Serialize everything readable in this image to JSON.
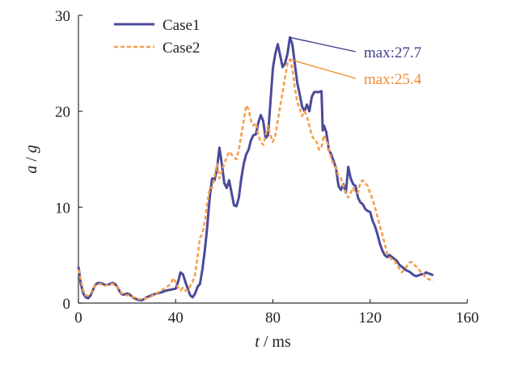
{
  "chart_data": {
    "type": "line",
    "title": "",
    "xlabel_var": "t",
    "xlabel_unit": "ms",
    "ylabel_var_a": "a",
    "ylabel_var_g": "g",
    "xlim": [
      0,
      160
    ],
    "ylim": [
      0,
      30
    ],
    "xticks": [
      0,
      40,
      80,
      120,
      160
    ],
    "yticks": [
      0,
      10,
      20,
      30
    ],
    "xtick_labels": [
      "0",
      "40",
      "80",
      "120",
      "160"
    ],
    "ytick_labels": [
      "0",
      "10",
      "20",
      "30"
    ],
    "grid": false,
    "legend_position": "top-left",
    "series": [
      {
        "name": "Case1",
        "color": "#4a4a9a",
        "style": "solid",
        "points": [
          [
            0,
            3.8
          ],
          [
            1,
            2.0
          ],
          [
            2,
            1.0
          ],
          [
            3,
            0.6
          ],
          [
            4,
            0.5
          ],
          [
            5,
            0.8
          ],
          [
            6,
            1.4
          ],
          [
            7,
            1.9
          ],
          [
            8,
            2.1
          ],
          [
            9,
            2.1
          ],
          [
            10,
            2.0
          ],
          [
            11,
            1.9
          ],
          [
            12,
            1.9
          ],
          [
            13,
            2.0
          ],
          [
            14,
            2.1
          ],
          [
            15,
            2.0
          ],
          [
            16,
            1.7
          ],
          [
            17,
            1.2
          ],
          [
            18,
            0.9
          ],
          [
            19,
            0.9
          ],
          [
            20,
            1.0
          ],
          [
            21,
            0.9
          ],
          [
            22,
            0.7
          ],
          [
            23,
            0.5
          ],
          [
            24,
            0.4
          ],
          [
            25,
            0.3
          ],
          [
            26,
            0.3
          ],
          [
            27,
            0.4
          ],
          [
            28,
            0.6
          ],
          [
            30,
            0.8
          ],
          [
            32,
            1.0
          ],
          [
            34,
            1.1
          ],
          [
            36,
            1.3
          ],
          [
            38,
            1.4
          ],
          [
            40,
            1.5
          ],
          [
            41,
            2.2
          ],
          [
            42,
            3.2
          ],
          [
            43,
            3.0
          ],
          [
            44,
            2.2
          ],
          [
            45,
            1.5
          ],
          [
            46,
            0.8
          ],
          [
            47,
            0.6
          ],
          [
            48,
            1.0
          ],
          [
            49,
            1.7
          ],
          [
            50,
            2.0
          ],
          [
            51,
            3.5
          ],
          [
            52,
            5.5
          ],
          [
            53,
            8.0
          ],
          [
            54,
            11.0
          ],
          [
            55,
            13.0
          ],
          [
            56,
            12.8
          ],
          [
            57,
            14.0
          ],
          [
            58,
            16.2
          ],
          [
            59,
            14.5
          ],
          [
            60,
            12.5
          ],
          [
            61,
            12.0
          ],
          [
            62,
            12.8
          ],
          [
            63,
            11.5
          ],
          [
            64,
            10.2
          ],
          [
            65,
            10.1
          ],
          [
            66,
            11.0
          ],
          [
            67,
            13.0
          ],
          [
            68,
            14.5
          ],
          [
            69,
            15.5
          ],
          [
            70,
            16.0
          ],
          [
            71,
            17.0
          ],
          [
            72,
            17.5
          ],
          [
            73,
            17.6
          ],
          [
            74,
            18.8
          ],
          [
            75,
            19.6
          ],
          [
            76,
            19.0
          ],
          [
            77,
            17.2
          ],
          [
            78,
            17.5
          ],
          [
            79,
            21.0
          ],
          [
            80,
            24.5
          ],
          [
            81,
            26.0
          ],
          [
            82,
            27.0
          ],
          [
            83,
            25.8
          ],
          [
            84,
            24.6
          ],
          [
            85,
            25.0
          ],
          [
            86,
            26.0
          ],
          [
            87,
            27.7
          ],
          [
            88,
            27.0
          ],
          [
            89,
            25.0
          ],
          [
            90,
            23.0
          ],
          [
            91,
            21.8
          ],
          [
            92,
            20.5
          ],
          [
            93,
            20.0
          ],
          [
            94,
            20.7
          ],
          [
            95,
            20.0
          ],
          [
            96,
            21.5
          ],
          [
            97,
            22.0
          ],
          [
            98,
            22.0
          ],
          [
            99,
            22.0
          ],
          [
            100,
            22.1
          ],
          [
            100.5,
            18.0
          ],
          [
            101,
            18.5
          ],
          [
            102,
            17.8
          ],
          [
            103,
            16.0
          ],
          [
            104,
            15.5
          ],
          [
            105,
            14.8
          ],
          [
            106,
            14.0
          ],
          [
            107,
            12.2
          ],
          [
            108,
            11.8
          ],
          [
            109,
            12.4
          ],
          [
            110,
            11.5
          ],
          [
            111,
            14.2
          ],
          [
            112,
            13.0
          ],
          [
            113,
            12.4
          ],
          [
            114,
            12.2
          ],
          [
            115,
            11.0
          ],
          [
            116,
            10.5
          ],
          [
            117,
            10.3
          ],
          [
            118,
            9.8
          ],
          [
            119,
            9.6
          ],
          [
            120,
            9.5
          ],
          [
            121,
            8.6
          ],
          [
            122,
            8.0
          ],
          [
            123,
            7.2
          ],
          [
            124,
            6.2
          ],
          [
            125,
            5.5
          ],
          [
            126,
            5.0
          ],
          [
            127,
            4.8
          ],
          [
            128,
            5.0
          ],
          [
            129,
            4.8
          ],
          [
            130,
            4.6
          ],
          [
            131,
            4.4
          ],
          [
            132,
            4.0
          ],
          [
            133,
            3.8
          ],
          [
            134,
            3.6
          ],
          [
            135,
            3.4
          ],
          [
            136,
            3.3
          ],
          [
            137,
            3.1
          ],
          [
            138,
            2.9
          ],
          [
            139,
            2.8
          ],
          [
            140,
            2.9
          ],
          [
            141,
            3.0
          ],
          [
            142,
            3.0
          ],
          [
            143,
            3.2
          ],
          [
            144,
            3.1
          ],
          [
            145,
            3.0
          ],
          [
            146,
            2.9
          ]
        ]
      },
      {
        "name": "Case2",
        "color": "#f5a050",
        "style": "dashed",
        "points": [
          [
            0,
            3.5
          ],
          [
            1,
            2.4
          ],
          [
            2,
            1.3
          ],
          [
            3,
            0.8
          ],
          [
            4,
            0.8
          ],
          [
            5,
            1.0
          ],
          [
            6,
            1.5
          ],
          [
            7,
            1.8
          ],
          [
            8,
            2.0
          ],
          [
            9,
            2.0
          ],
          [
            10,
            1.9
          ],
          [
            11,
            1.8
          ],
          [
            12,
            1.9
          ],
          [
            13,
            2.0
          ],
          [
            14,
            2.0
          ],
          [
            15,
            1.9
          ],
          [
            16,
            1.7
          ],
          [
            17,
            1.3
          ],
          [
            18,
            1.0
          ],
          [
            19,
            0.9
          ],
          [
            20,
            0.8
          ],
          [
            21,
            0.8
          ],
          [
            22,
            0.7
          ],
          [
            23,
            0.6
          ],
          [
            24,
            0.5
          ],
          [
            25,
            0.4
          ],
          [
            26,
            0.4
          ],
          [
            28,
            0.5
          ],
          [
            30,
            0.7
          ],
          [
            32,
            1.0
          ],
          [
            34,
            1.3
          ],
          [
            36,
            1.6
          ],
          [
            38,
            2.0
          ],
          [
            39,
            2.6
          ],
          [
            40,
            2.2
          ],
          [
            41,
            1.6
          ],
          [
            42,
            1.3
          ],
          [
            43,
            1.6
          ],
          [
            44,
            1.3
          ],
          [
            45,
            1.3
          ],
          [
            46,
            1.8
          ],
          [
            47,
            2.2
          ],
          [
            48,
            3.0
          ],
          [
            49,
            4.8
          ],
          [
            50,
            6.8
          ],
          [
            51,
            7.2
          ],
          [
            52,
            8.5
          ],
          [
            53,
            10.5
          ],
          [
            54,
            12.0
          ],
          [
            55,
            12.0
          ],
          [
            56,
            13.2
          ],
          [
            57,
            14.5
          ],
          [
            58,
            13.0
          ],
          [
            59,
            13.8
          ],
          [
            60,
            14.5
          ],
          [
            61,
            15.2
          ],
          [
            62,
            15.8
          ],
          [
            63,
            15.5
          ],
          [
            64,
            15.2
          ],
          [
            65,
            15.0
          ],
          [
            66,
            16.0
          ],
          [
            67,
            17.5
          ],
          [
            68,
            19.0
          ],
          [
            69,
            20.6
          ],
          [
            70,
            20.2
          ],
          [
            71,
            19.0
          ],
          [
            72,
            18.5
          ],
          [
            73,
            18.8
          ],
          [
            74,
            17.5
          ],
          [
            75,
            16.8
          ],
          [
            76,
            16.5
          ],
          [
            77,
            17.5
          ],
          [
            78,
            18.5
          ],
          [
            79,
            17.5
          ],
          [
            80,
            16.8
          ],
          [
            81,
            17.5
          ],
          [
            82,
            19.0
          ],
          [
            83,
            20.5
          ],
          [
            84,
            22.0
          ],
          [
            85,
            23.5
          ],
          [
            86,
            25.0
          ],
          [
            87,
            25.4
          ],
          [
            88,
            24.5
          ],
          [
            89,
            22.5
          ],
          [
            90,
            21.0
          ],
          [
            91,
            20.3
          ],
          [
            92,
            19.5
          ],
          [
            93,
            20.0
          ],
          [
            94,
            19.5
          ],
          [
            95,
            18.5
          ],
          [
            96,
            17.5
          ],
          [
            97,
            17.0
          ],
          [
            98,
            16.8
          ],
          [
            99,
            16.0
          ],
          [
            100,
            16.2
          ],
          [
            101,
            17.5
          ],
          [
            102,
            17.0
          ],
          [
            103,
            16.2
          ],
          [
            104,
            15.0
          ],
          [
            105,
            14.5
          ],
          [
            106,
            14.0
          ],
          [
            107,
            13.3
          ],
          [
            108,
            13.0
          ],
          [
            109,
            12.2
          ],
          [
            110,
            11.5
          ],
          [
            111,
            11.0
          ],
          [
            112,
            11.5
          ],
          [
            113,
            12.0
          ],
          [
            114,
            11.5
          ],
          [
            115,
            11.5
          ],
          [
            116,
            12.6
          ],
          [
            117,
            12.8
          ],
          [
            118,
            12.5
          ],
          [
            119,
            12.2
          ],
          [
            120,
            11.5
          ],
          [
            121,
            10.8
          ],
          [
            122,
            10.0
          ],
          [
            123,
            9.0
          ],
          [
            124,
            8.0
          ],
          [
            125,
            7.2
          ],
          [
            126,
            6.2
          ],
          [
            127,
            5.2
          ],
          [
            128,
            4.8
          ],
          [
            129,
            4.5
          ],
          [
            130,
            4.4
          ],
          [
            131,
            4.0
          ],
          [
            132,
            3.6
          ],
          [
            133,
            3.2
          ],
          [
            134,
            3.5
          ],
          [
            135,
            3.8
          ],
          [
            136,
            4.2
          ],
          [
            137,
            4.3
          ],
          [
            138,
            4.0
          ],
          [
            139,
            3.8
          ],
          [
            140,
            3.5
          ],
          [
            141,
            3.2
          ],
          [
            142,
            3.0
          ],
          [
            143,
            2.6
          ],
          [
            144,
            2.5
          ],
          [
            145,
            2.4
          ],
          [
            146,
            2.3
          ]
        ]
      }
    ],
    "annotations": [
      {
        "text": "max:27.7",
        "series": "Case1",
        "color": "#3f3f8f",
        "x": 87,
        "y": 27.7
      },
      {
        "text": "max:25.4",
        "series": "Case2",
        "color": "#f08a30",
        "x": 87,
        "y": 25.4
      }
    ]
  }
}
